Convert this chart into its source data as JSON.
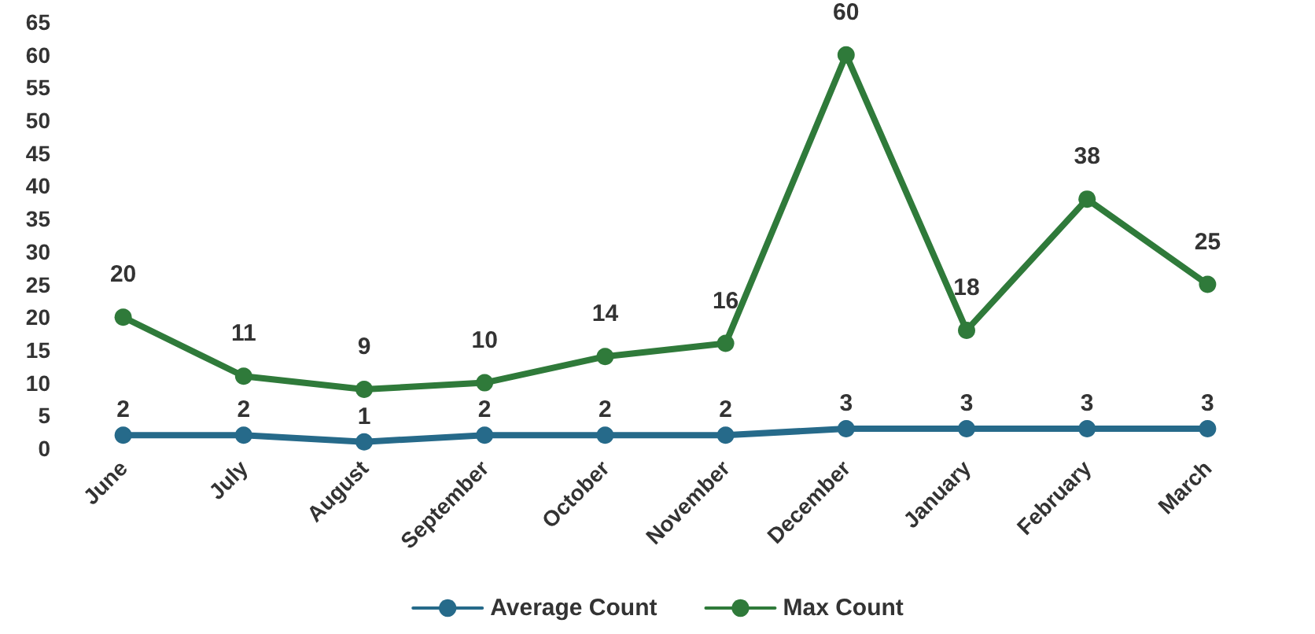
{
  "chart_data": {
    "type": "line",
    "categories": [
      "June",
      "July",
      "August",
      "September",
      "October",
      "November",
      "December",
      "January",
      "February",
      "March"
    ],
    "series": [
      {
        "name": "Average Count",
        "color": "#266a8a",
        "values": [
          2,
          2,
          1,
          2,
          2,
          2,
          3,
          3,
          3,
          3
        ]
      },
      {
        "name": "Max Count",
        "color": "#2f7a3a",
        "values": [
          20,
          11,
          9,
          10,
          14,
          16,
          60,
          18,
          38,
          25
        ]
      }
    ],
    "ylim": [
      0,
      65
    ],
    "yticks": [
      0,
      5,
      10,
      15,
      20,
      25,
      30,
      35,
      40,
      45,
      50,
      55,
      60,
      65
    ],
    "grid": false,
    "legend": "bottom",
    "marker": "circle",
    "line_style": "solid",
    "data_labels": true
  }
}
